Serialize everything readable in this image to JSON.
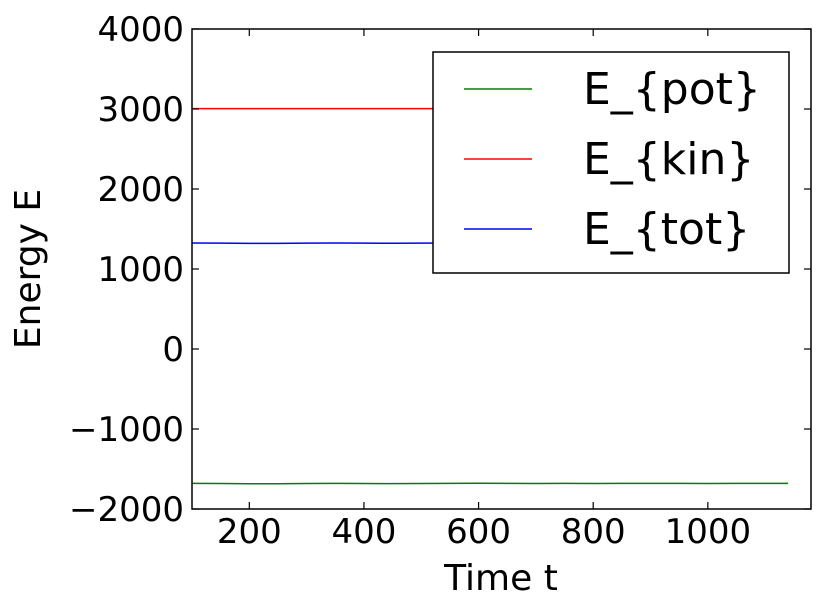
{
  "chart_data": {
    "type": "line",
    "xlabel": "Time t",
    "ylabel": "Energy E",
    "xlim": [
      100,
      1180
    ],
    "ylim": [
      -2000,
      4000
    ],
    "xticks": [
      200,
      400,
      600,
      800,
      1000
    ],
    "yticks": [
      -2000,
      -1000,
      0,
      1000,
      2000,
      3000,
      4000
    ],
    "x_tick_labels": [
      "200",
      "400",
      "600",
      "800",
      "1000"
    ],
    "y_tick_labels": [
      "−2000",
      "−1000",
      "0",
      "1000",
      "2000",
      "3000",
      "4000"
    ],
    "grid": false,
    "legend_position": "top-right",
    "x": [
      100,
      150,
      200,
      250,
      300,
      350,
      400,
      450,
      500,
      550,
      600,
      650,
      700,
      750,
      800,
      850,
      900,
      950,
      1000,
      1050,
      1100,
      1140
    ],
    "series": [
      {
        "name": "E_{pot}",
        "color": "#008000",
        "values": [
          -1680,
          -1682,
          -1684,
          -1685,
          -1681,
          -1680,
          -1682,
          -1683,
          -1682,
          -1680,
          -1678,
          -1680,
          -1681,
          -1680,
          -1682,
          -1680,
          -1679,
          -1680,
          -1681,
          -1680,
          -1679,
          -1680
        ]
      },
      {
        "name": "E_{kin}",
        "color": "#ff0000",
        "values": [
          3005,
          3005,
          3005,
          3005,
          3005,
          3005,
          3005,
          3005,
          3005,
          3005,
          3005,
          3005,
          3005,
          3005,
          3005,
          3005,
          3005,
          3005,
          3005,
          3005,
          3005,
          3005
        ]
      },
      {
        "name": "E_{tot}",
        "color": "#0000ff",
        "values": [
          1325,
          1323,
          1321,
          1320,
          1324,
          1325,
          1323,
          1322,
          1323,
          1325,
          1327,
          1325,
          1324,
          1325,
          1323,
          1325,
          1326,
          1325,
          1324,
          1325,
          1326,
          1325
        ]
      }
    ]
  }
}
